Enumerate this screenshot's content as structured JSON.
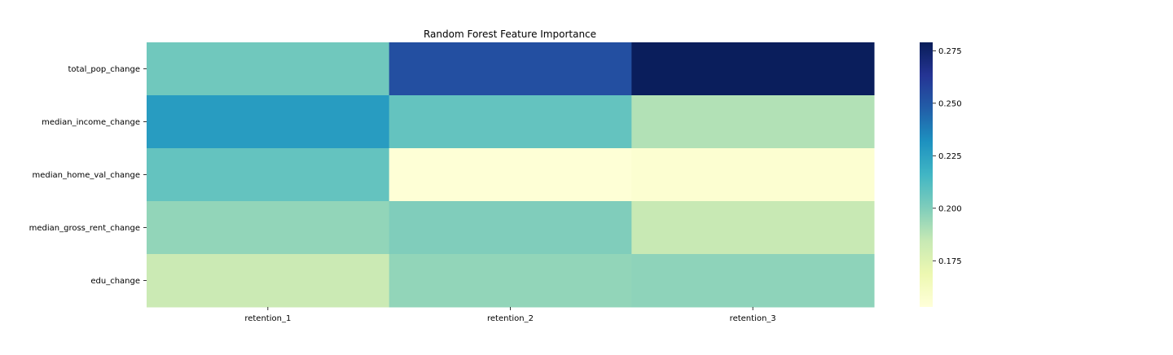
{
  "chart_data": {
    "type": "heatmap",
    "title": "Random Forest Feature Importance",
    "xlabel": "",
    "ylabel": "",
    "columns": [
      "retention_1",
      "retention_2",
      "retention_3"
    ],
    "rows": [
      "total_pop_change",
      "median_income_change",
      "median_home_val_change",
      "median_gross_rent_change",
      "edu_change"
    ],
    "values": [
      [
        0.204,
        0.253,
        0.278
      ],
      [
        0.227,
        0.207,
        0.189
      ],
      [
        0.207,
        0.154,
        0.156
      ],
      [
        0.196,
        0.2,
        0.184
      ],
      [
        0.183,
        0.196,
        0.197
      ]
    ],
    "colorbar": {
      "range": [
        0.153,
        0.279
      ],
      "ticks": [
        0.175,
        0.2,
        0.225,
        0.25,
        0.275
      ],
      "tick_labels": [
        "0.175",
        "0.200",
        "0.225",
        "0.250",
        "0.275"
      ],
      "colormap": "YlGnBu",
      "colormap_stops": [
        "#ffffd9",
        "#edf8b1",
        "#c7e9b4",
        "#7fcdbb",
        "#41b6c4",
        "#1d91c0",
        "#225ea8",
        "#253494",
        "#081d58"
      ]
    }
  }
}
